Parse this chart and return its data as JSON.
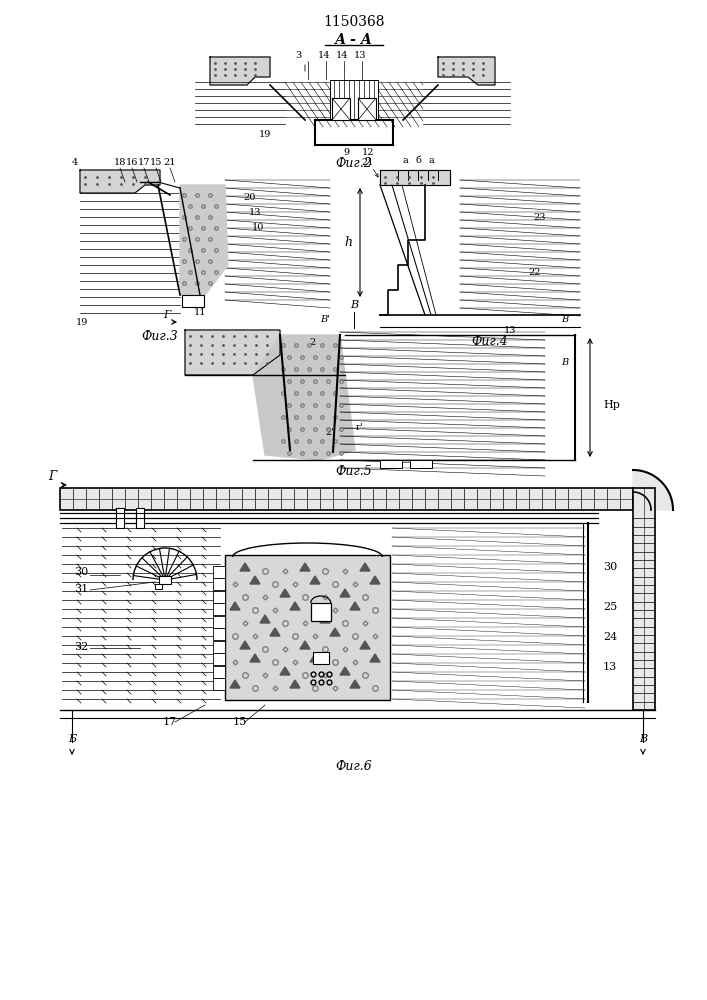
{
  "title": "1150368",
  "bg_color": "#ffffff",
  "line_color": "#000000",
  "fig2_caption": "Фиг.2",
  "fig3_caption": "Фиг.3",
  "fig4_caption": "Фиг.4",
  "fig5_caption": "Фиг.5",
  "fig6_caption": "Фиг.6"
}
